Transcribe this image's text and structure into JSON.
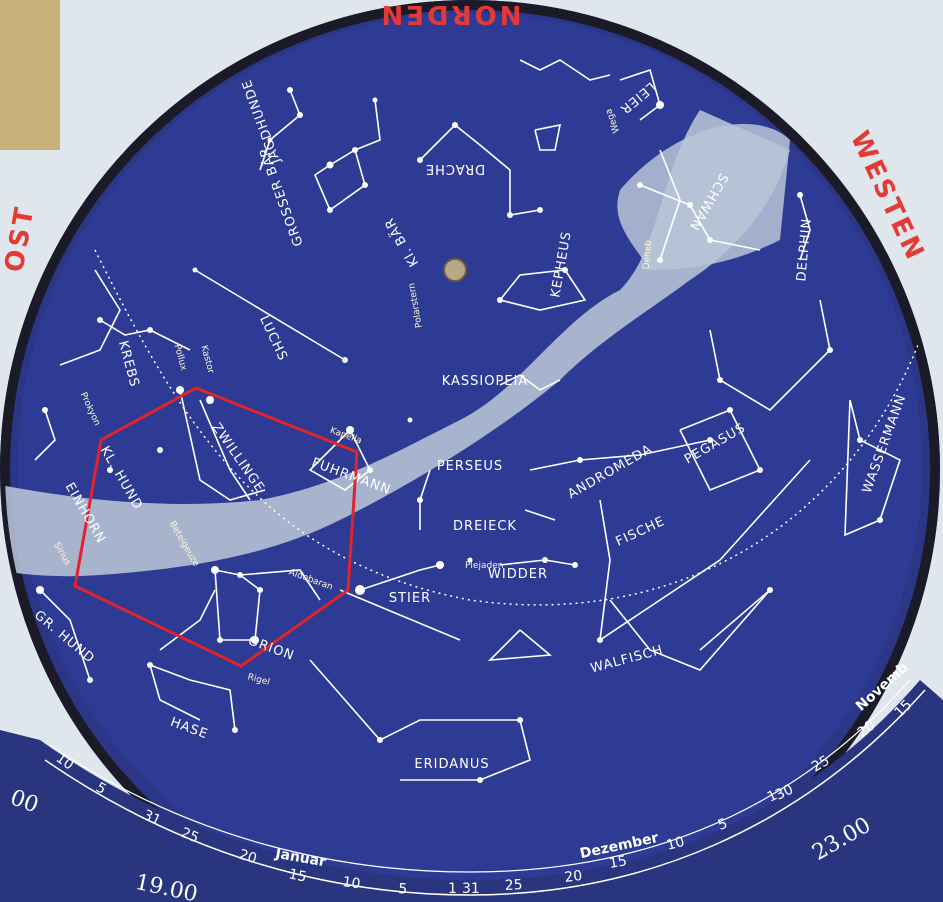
{
  "colors": {
    "sky": "#2a3a8f",
    "milky_way": "#b9c4d6",
    "highlight_polygon": "#e0242b",
    "cardinal_text": "#e53935"
  },
  "cardinal": {
    "north": "NORDEN",
    "west": "WESTEN",
    "east": "OST"
  },
  "constellations": {
    "jagdhunde": "JAGDHUNDE",
    "grosser_baer": "GROSSER BÄR",
    "drache": "DRACHE",
    "leier": "LEIER",
    "kl_baer": "Kl. BÄR",
    "kepheus": "KEPHEUS",
    "schwan": "SCHWAN",
    "delphin": "DELPHIN",
    "luchs": "LUCHS",
    "kassiopeia": "KASSIOPEIA",
    "krebs": "KREBS",
    "zwillinge": "ZWILLINGE",
    "fuhrmann": "FUHRMANN",
    "perseus": "PERSEUS",
    "andromeda": "ANDROMEDA",
    "pegasus": "PEGASUS",
    "wassermann": "WASSERMANN",
    "kl_hund": "KL. HUND",
    "einhorn": "EINHORN",
    "dreieck": "DREIECK",
    "widder": "WIDDER",
    "fische": "FISCHE",
    "stier": "STIER",
    "gr_hund": "GR. HUND",
    "orion": "ORION",
    "walfisch": "WALFISCH",
    "hase": "HASE",
    "eridanus": "ERIDANUS"
  },
  "stars": {
    "polarstern": "Polarstern",
    "wega": "Wega",
    "deneb": "Deneb",
    "pollux": "Pollux",
    "kastor": "Kastor",
    "prokyon": "Prokyon",
    "kapella": "Kapella",
    "aldebaran": "Aldebaran",
    "plejaden": "Plejaden",
    "rigel": "Rigel",
    "sirius": "Sirius",
    "beteigeuze": "Beteigeuze"
  },
  "months": {
    "januar": "Januar",
    "dezember": "Dezember",
    "november": "Novemb"
  },
  "times": {
    "t1900": "19.00",
    "t2300": "23.00",
    "t0": "00"
  },
  "day_ticks": {
    "d10a": "10",
    "d5a": "5",
    "d31a": "31",
    "d25a": "25",
    "d20a": "20",
    "d15a": "15",
    "d10b": "10",
    "d5b": "5",
    "d1b": "1",
    "d31b": "31",
    "d25b": "25",
    "d20b": "20",
    "d15b": "15",
    "d10c": "10",
    "d5c": "5",
    "d1c": "1",
    "d30c": "30",
    "d25c": "25",
    "d20c": "20",
    "d15c": "15"
  }
}
